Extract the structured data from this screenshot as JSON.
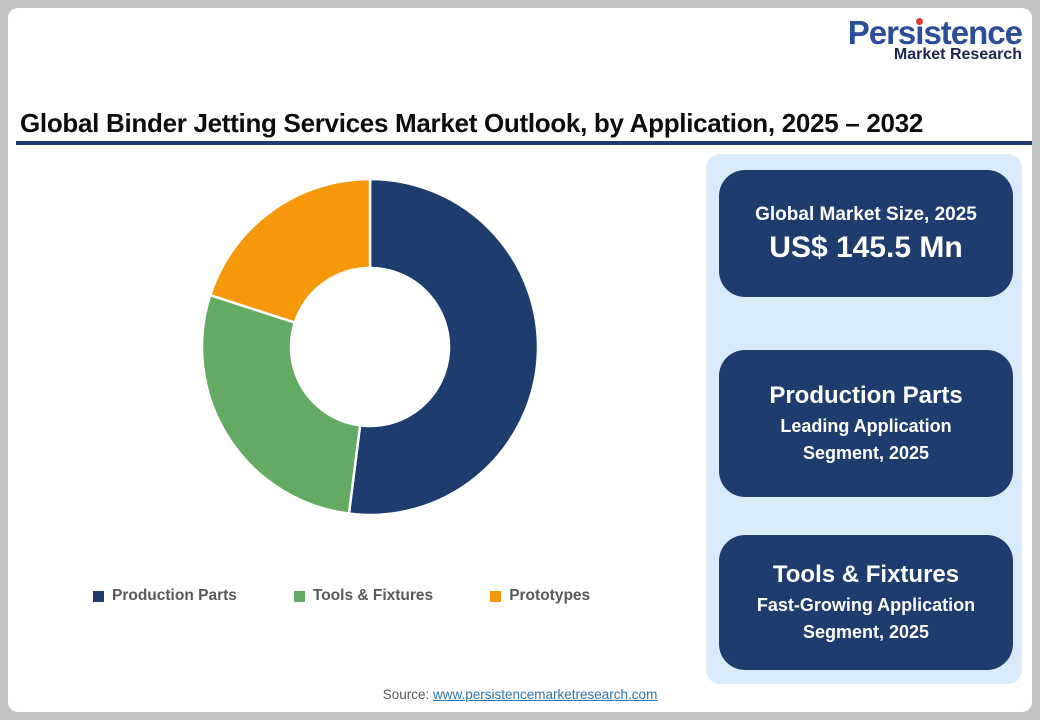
{
  "page": {
    "title": "Global Binder Jetting Services Market Outlook, by Application, 2025 – 2032",
    "source_label": "Source:",
    "source_link": "www.persistencemarketresearch.com"
  },
  "logo": {
    "name": "Persistence",
    "tagline": "Market Research"
  },
  "chart_data": {
    "type": "pie",
    "subtype": "donut",
    "title": "Global Binder Jetting Services Market Outlook, by Application, 2025 – 2032",
    "categories": [
      "Production Parts",
      "Tools & Fixtures",
      "Prototypes"
    ],
    "values": [
      52,
      28,
      20
    ],
    "unit": "percent-share-estimated",
    "colors": [
      "#1F3C6E",
      "#63AB63",
      "#F7980A"
    ],
    "start_angle_deg": 0,
    "direction": "clockwise",
    "hole_ratio": 0.47,
    "separator": "white",
    "legend_position": "bottom",
    "data_labels": "none"
  },
  "panel": {
    "cards": [
      {
        "line1": "Global Market Size, 2025",
        "line2": "US$ 145.5 Mn"
      },
      {
        "line1": "Production Parts",
        "line2": "Leading Application",
        "line3": "Segment, 2025"
      },
      {
        "line1": "Tools & Fixtures",
        "line2": "Fast-Growing Application",
        "line3": "Segment, 2025"
      }
    ]
  },
  "colors": {
    "navy": "#1F3C6E",
    "green": "#63AB63",
    "orange": "#F7980A",
    "panel-bg": "#D9EAFB",
    "link": "#2E74B5",
    "text-gray": "#595959",
    "logo-blue": "#2B4C9B",
    "logo-dark": "#1E2356",
    "logo-red": "#E03A2F",
    "frame-gray": "#C2C2C2",
    "title-rule": "#1F3C6E"
  }
}
